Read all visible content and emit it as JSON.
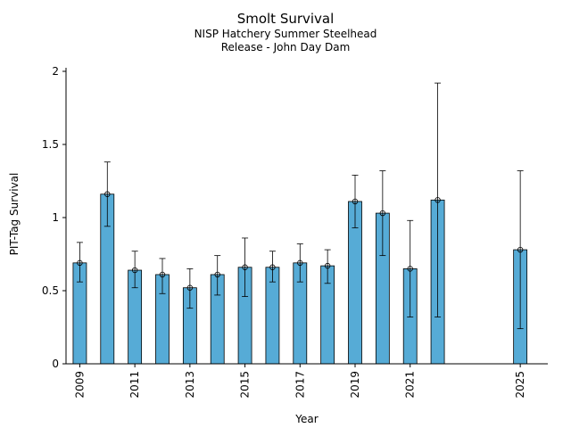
{
  "chart_data": {
    "type": "bar",
    "title": "Smolt Survival",
    "subtitle": [
      "NISP Hatchery Summer Steelhead",
      "Release - John Day Dam"
    ],
    "xlabel": "Year",
    "ylabel": "PIT-Tag Survival",
    "ylim": [
      0,
      2
    ],
    "xlim": [
      2008.5,
      2026
    ],
    "yticks": [
      0,
      0.5,
      1,
      1.5,
      2
    ],
    "ytick_labels": [
      "0",
      "0.5",
      "1",
      "1.5",
      "2"
    ],
    "xticks": [
      2009,
      2011,
      2013,
      2015,
      2017,
      2019,
      2021,
      2025
    ],
    "xtick_labels": [
      "2009",
      "2011",
      "2013",
      "2015",
      "2017",
      "2019",
      "2021",
      "2025"
    ],
    "bar_color": "#56abd6",
    "years": [
      2009,
      2010,
      2011,
      2012,
      2013,
      2014,
      2015,
      2016,
      2017,
      2018,
      2019,
      2020,
      2021,
      2022,
      2025
    ],
    "values": [
      0.69,
      1.16,
      0.64,
      0.61,
      0.52,
      0.61,
      0.66,
      0.66,
      0.69,
      0.67,
      1.11,
      1.03,
      0.65,
      1.12,
      0.78
    ],
    "lower": [
      0.56,
      0.94,
      0.52,
      0.48,
      0.38,
      0.47,
      0.46,
      0.56,
      0.56,
      0.55,
      0.93,
      0.74,
      0.32,
      0.32,
      0.24
    ],
    "upper": [
      0.83,
      1.38,
      0.77,
      0.72,
      0.65,
      0.74,
      0.86,
      0.77,
      0.82,
      0.78,
      1.29,
      1.32,
      0.98,
      1.92,
      1.32
    ]
  }
}
